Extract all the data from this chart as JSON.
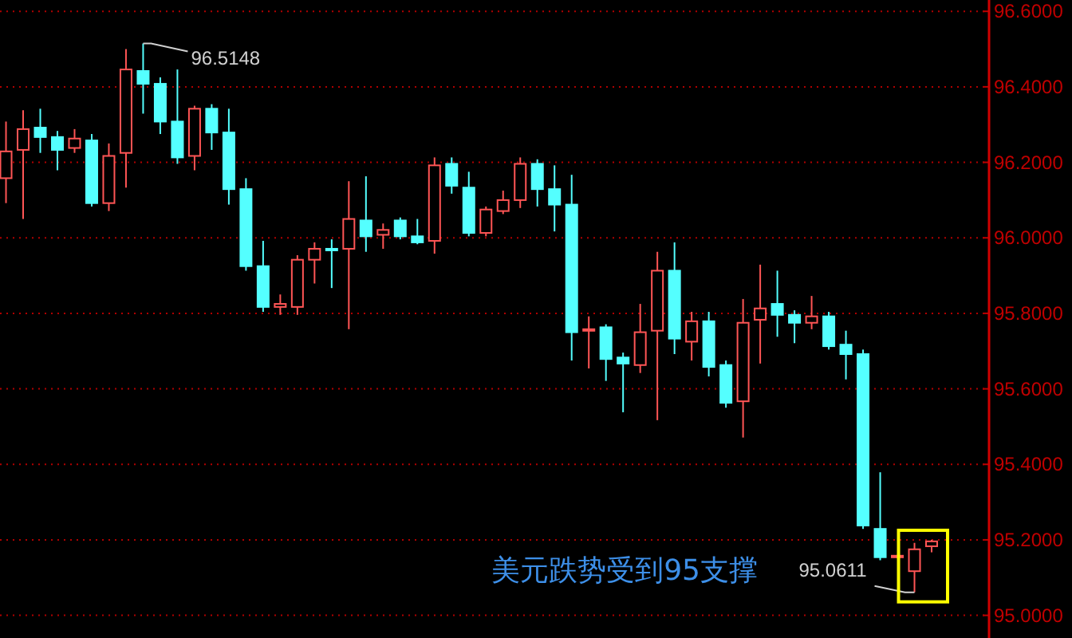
{
  "chart_data": {
    "type": "candlestick",
    "categories": [
      null,
      null,
      null,
      null,
      null,
      null,
      null,
      null,
      null,
      null,
      null,
      null,
      null,
      null,
      null,
      null,
      null,
      null,
      null,
      null,
      null,
      null,
      null,
      null,
      null,
      null,
      null,
      null,
      null,
      null,
      null,
      null,
      null,
      null,
      null,
      null,
      null,
      null,
      null,
      null,
      null,
      null,
      null,
      null,
      null,
      null,
      null,
      null,
      null,
      null,
      null,
      null,
      null,
      null,
      null
    ],
    "ohlc": [
      [
        96.158,
        96.308,
        96.092,
        96.229
      ],
      [
        96.233,
        96.338,
        96.05,
        96.288
      ],
      [
        96.292,
        96.342,
        96.225,
        96.267
      ],
      [
        96.267,
        96.283,
        96.179,
        96.233
      ],
      [
        96.238,
        96.288,
        96.225,
        96.263
      ],
      [
        96.258,
        96.275,
        96.083,
        96.092
      ],
      [
        96.092,
        96.25,
        96.071,
        96.217
      ],
      [
        96.225,
        96.5,
        96.133,
        96.446
      ],
      [
        96.442,
        96.5148,
        96.329,
        96.408
      ],
      [
        96.408,
        96.425,
        96.275,
        96.308
      ],
      [
        96.308,
        96.446,
        96.196,
        96.213
      ],
      [
        96.217,
        96.35,
        96.179,
        96.342
      ],
      [
        96.342,
        96.354,
        96.233,
        96.279
      ],
      [
        96.279,
        96.342,
        96.088,
        96.129
      ],
      [
        96.129,
        96.158,
        95.913,
        95.925
      ],
      [
        95.925,
        95.992,
        95.804,
        95.817
      ],
      [
        95.817,
        95.85,
        95.796,
        95.825
      ],
      [
        95.817,
        95.954,
        95.796,
        95.942
      ],
      [
        95.942,
        95.988,
        95.879,
        95.971
      ],
      [
        95.971,
        95.996,
        95.867,
        95.967
      ],
      [
        95.971,
        96.15,
        95.758,
        96.05
      ],
      [
        96.046,
        96.163,
        95.963,
        96.004
      ],
      [
        96.008,
        96.038,
        95.971,
        96.021
      ],
      [
        96.046,
        96.054,
        95.996,
        96.004
      ],
      [
        96.004,
        96.05,
        95.983,
        95.988
      ],
      [
        95.992,
        96.213,
        95.958,
        96.192
      ],
      [
        96.196,
        96.213,
        96.117,
        96.138
      ],
      [
        96.133,
        96.175,
        96.004,
        96.013
      ],
      [
        96.013,
        96.083,
        96.004,
        96.075
      ],
      [
        96.071,
        96.125,
        96.063,
        96.1
      ],
      [
        96.1,
        96.213,
        96.079,
        96.196
      ],
      [
        96.196,
        96.208,
        96.083,
        96.129
      ],
      [
        96.129,
        96.192,
        96.017,
        96.088
      ],
      [
        96.088,
        96.167,
        95.675,
        95.75
      ],
      [
        95.754,
        95.792,
        95.654,
        95.758
      ],
      [
        95.763,
        95.771,
        95.621,
        95.679
      ],
      [
        95.683,
        95.696,
        95.538,
        95.667
      ],
      [
        95.663,
        95.825,
        95.642,
        95.75
      ],
      [
        95.754,
        95.963,
        95.517,
        95.913
      ],
      [
        95.913,
        95.988,
        95.692,
        95.733
      ],
      [
        95.725,
        95.804,
        95.675,
        95.779
      ],
      [
        95.779,
        95.804,
        95.633,
        95.658
      ],
      [
        95.663,
        95.675,
        95.55,
        95.563
      ],
      [
        95.567,
        95.838,
        95.471,
        95.775
      ],
      [
        95.783,
        95.929,
        95.667,
        95.813
      ],
      [
        95.825,
        95.913,
        95.738,
        95.796
      ],
      [
        95.796,
        95.808,
        95.721,
        95.775
      ],
      [
        95.775,
        95.846,
        95.758,
        95.792
      ],
      [
        95.792,
        95.804,
        95.704,
        95.713
      ],
      [
        95.717,
        95.754,
        95.625,
        95.692
      ],
      [
        95.692,
        95.704,
        95.229,
        95.238
      ],
      [
        95.229,
        95.379,
        95.146,
        95.154
      ],
      [
        95.154,
        95.16,
        95.152,
        95.158
      ],
      [
        95.117,
        95.192,
        95.0611,
        95.175
      ],
      [
        95.183,
        95.2,
        95.167,
        95.196
      ]
    ],
    "colors": [
      "#ff5555",
      "#ff5555",
      "#54ffff",
      "#54ffff",
      "#ff5555",
      "#54ffff",
      "#ff5555",
      "#ff5555",
      "#54ffff",
      "#54ffff",
      "#54ffff",
      "#ff5555",
      "#54ffff",
      "#54ffff",
      "#54ffff",
      "#54ffff",
      "#ff5555",
      "#ff5555",
      "#ff5555",
      "#54ffff",
      "#ff5555",
      "#54ffff",
      "#ff5555",
      "#54ffff",
      "#54ffff",
      "#ff5555",
      "#54ffff",
      "#54ffff",
      "#ff5555",
      "#ff5555",
      "#ff5555",
      "#54ffff",
      "#54ffff",
      "#54ffff",
      "#ff5555",
      "#54ffff",
      "#54ffff",
      "#ff5555",
      "#ff5555",
      "#54ffff",
      "#ff5555",
      "#54ffff",
      "#54ffff",
      "#ff5555",
      "#ff5555",
      "#54ffff",
      "#54ffff",
      "#ff5555",
      "#54ffff",
      "#54ffff",
      "#54ffff",
      "#54ffff",
      "#ff5555",
      "#ff5555",
      "#ff5555"
    ],
    "ylim": [
      94.94,
      96.63
    ],
    "yticks": [
      {
        "value": 95.0,
        "label": "95.0000"
      },
      {
        "value": 95.2,
        "label": "95.2000"
      },
      {
        "value": 95.4,
        "label": "95.4000"
      },
      {
        "value": 95.6,
        "label": "95.6000"
      },
      {
        "value": 95.8,
        "label": "95.8000"
      },
      {
        "value": 96.0,
        "label": "96.0000"
      },
      {
        "value": 96.2,
        "label": "96.2000"
      },
      {
        "value": 96.4,
        "label": "96.4000"
      },
      {
        "value": 96.6,
        "label": "96.6000"
      }
    ],
    "grid": "y",
    "annotations": [
      "96.5148",
      "95.0611",
      "美元跌势受到95支撑"
    ]
  }
}
